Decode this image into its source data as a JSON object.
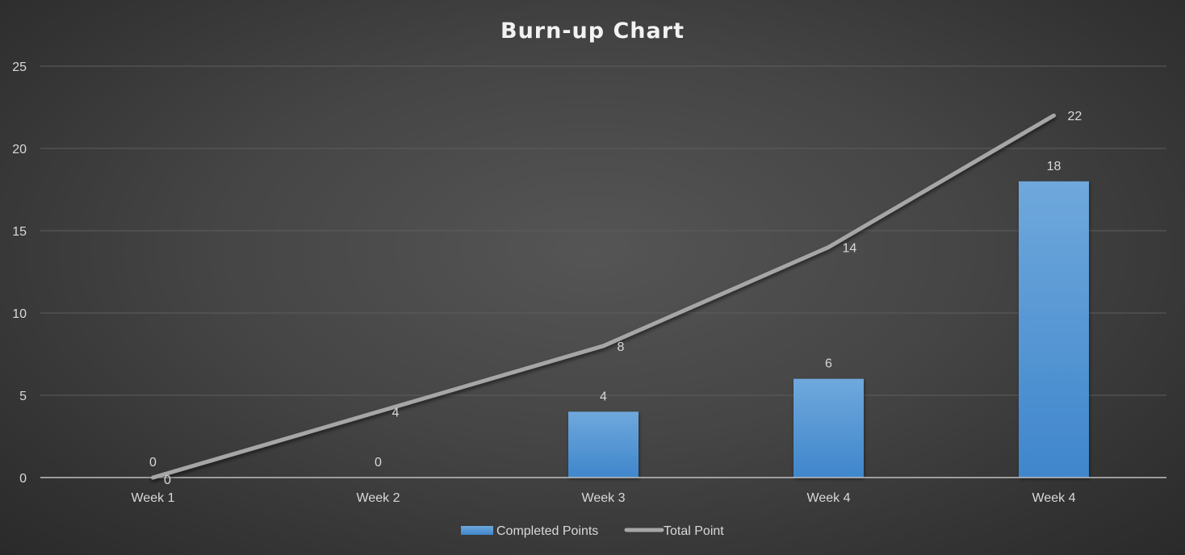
{
  "chart_data": {
    "type": "bar",
    "title": "Burn-up Chart",
    "categories": [
      "Week 1",
      "Week 2",
      "Week 3",
      "Week  4",
      "Week 4"
    ],
    "series": [
      {
        "name": "Completed Points",
        "kind": "bar",
        "values": [
          0,
          0,
          4,
          6,
          18
        ],
        "color": "#5b9bd5"
      },
      {
        "name": "Total Point",
        "kind": "line",
        "values": [
          0,
          4,
          8,
          14,
          22
        ],
        "color": "#a6a6a6"
      }
    ],
    "y_ticks": [
      "0",
      "5",
      "10",
      "15",
      "20",
      "25"
    ],
    "ylim": [
      0,
      25
    ],
    "grid": true,
    "legend": "bottom",
    "xlabel": "",
    "ylabel": ""
  }
}
